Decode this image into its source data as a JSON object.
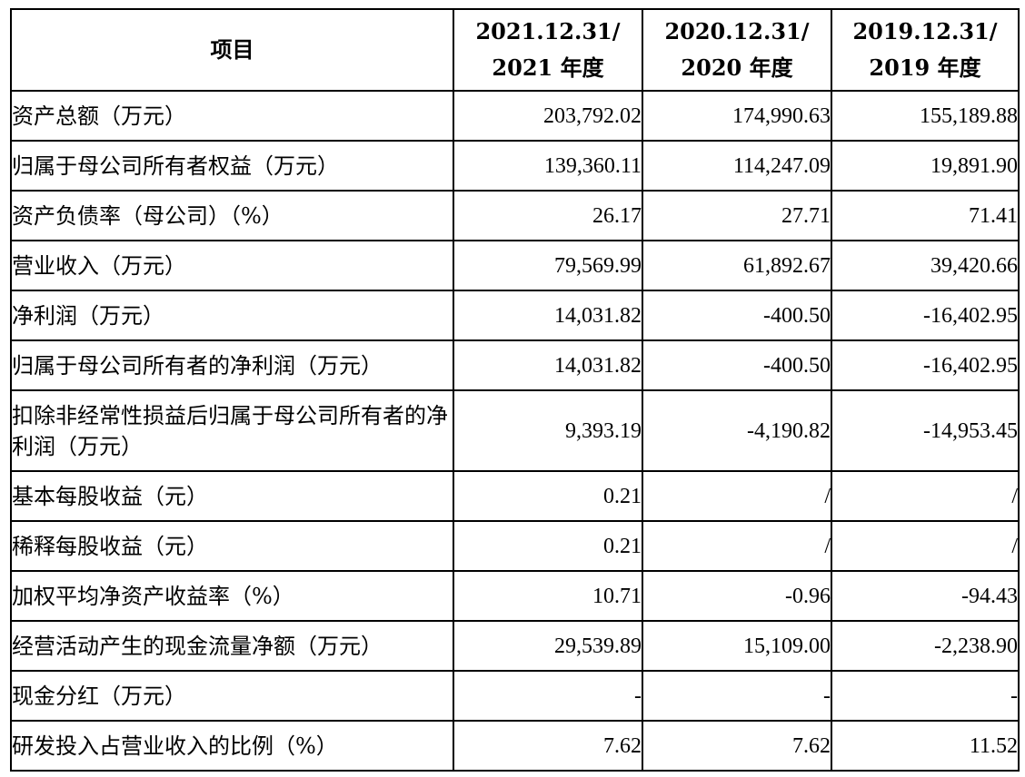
{
  "header": {
    "item_label": "项目",
    "col1": [
      "2021.12.31/",
      "2021 年度"
    ],
    "col2": [
      "2020.12.31/",
      "2020 年度"
    ],
    "col3": [
      "2019.12.31/",
      "2019 年度"
    ]
  },
  "rows": [
    {
      "label": "资产总额（万元）",
      "v2021": "203,792.02",
      "v2020": "174,990.63",
      "v2019": "155,189.88"
    },
    {
      "label": "归属于母公司所有者权益（万元）",
      "v2021": "139,360.11",
      "v2020": "114,247.09",
      "v2019": "19,891.90"
    },
    {
      "label": "资产负债率（母公司）（%）",
      "v2021": "26.17",
      "v2020": "27.71",
      "v2019": "71.41"
    },
    {
      "label": "营业收入（万元）",
      "v2021": "79,569.99",
      "v2020": "61,892.67",
      "v2019": "39,420.66"
    },
    {
      "label": "净利润（万元）",
      "v2021": "14,031.82",
      "v2020": "-400.50",
      "v2019": "-16,402.95"
    },
    {
      "label": "归属于母公司所有者的净利润（万元）",
      "v2021": "14,031.82",
      "v2020": "-400.50",
      "v2019": "-16,402.95"
    },
    {
      "label": "扣除非经常性损益后归属于母公司所有者的净利润（万元）",
      "v2021": "9,393.19",
      "v2020": "-4,190.82",
      "v2019": "-14,953.45"
    },
    {
      "label": "基本每股收益（元）",
      "v2021": "0.21",
      "v2020": "/",
      "v2019": "/"
    },
    {
      "label": "稀释每股收益（元）",
      "v2021": "0.21",
      "v2020": "/",
      "v2019": "/"
    },
    {
      "label": "加权平均净资产收益率（%）",
      "v2021": "10.71",
      "v2020": "-0.96",
      "v2019": "-94.43"
    },
    {
      "label": "经营活动产生的现金流量净额（万元）",
      "v2021": "29,539.89",
      "v2020": "15,109.00",
      "v2019": "-2,238.90"
    },
    {
      "label": "现金分红（万元）",
      "v2021": "-",
      "v2020": "-",
      "v2019": "-"
    },
    {
      "label": "研发投入占营业收入的比例（%）",
      "v2021": "7.62",
      "v2020": "7.62",
      "v2019": "11.52"
    }
  ]
}
